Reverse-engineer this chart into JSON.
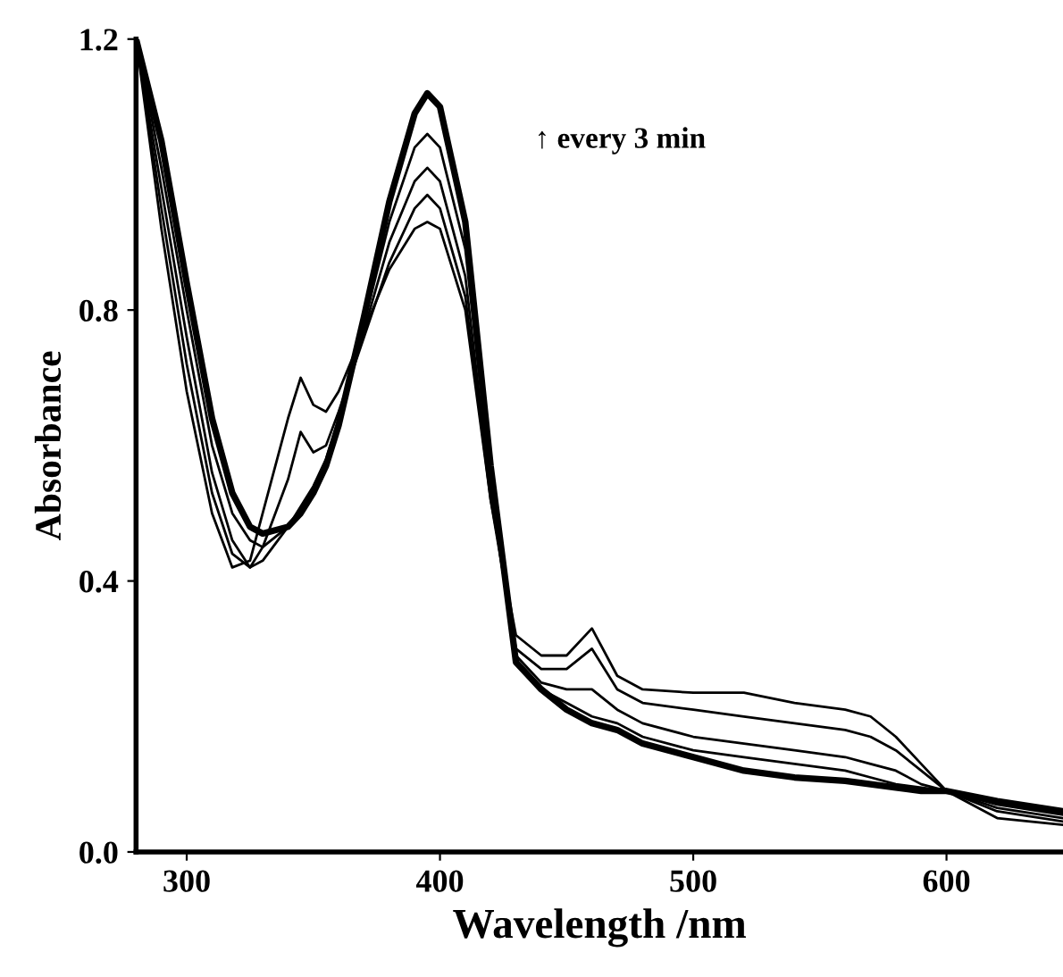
{
  "chart_data": {
    "type": "line",
    "xlabel": "Wavelength /nm",
    "ylabel": "Absorbance",
    "annotations": [
      "↑ every 3 min"
    ],
    "xlim": [
      280,
      646
    ],
    "ylim": [
      0.0,
      1.2
    ],
    "xticks": [
      300,
      400,
      500,
      600
    ],
    "yticks": [
      {
        "value": 0.0,
        "label": "0.0"
      },
      {
        "value": 0.4,
        "label": "0.4"
      },
      {
        "value": 0.8,
        "label": "0.8"
      },
      {
        "value": 1.2,
        "label": "1.2"
      }
    ],
    "grid": false,
    "marker": "none",
    "line_style": "solid",
    "x": [
      280,
      290,
      300,
      310,
      318,
      325,
      330,
      340,
      345,
      350,
      355,
      360,
      370,
      380,
      390,
      395,
      400,
      410,
      420,
      430,
      440,
      450,
      460,
      470,
      480,
      500,
      520,
      540,
      560,
      570,
      580,
      590,
      600,
      620,
      646
    ],
    "series": [
      {
        "color": "#000000",
        "values": [
          1.2,
          0.92,
          0.68,
          0.5,
          0.42,
          0.43,
          0.5,
          0.64,
          0.7,
          0.66,
          0.65,
          0.68,
          0.77,
          0.86,
          0.92,
          0.93,
          0.92,
          0.8,
          0.52,
          0.32,
          0.29,
          0.29,
          0.33,
          0.26,
          0.24,
          0.235,
          0.235,
          0.22,
          0.21,
          0.2,
          0.17,
          0.13,
          0.09,
          0.05,
          0.04
        ]
      },
      {
        "color": "#000000",
        "values": [
          1.2,
          0.95,
          0.72,
          0.53,
          0.44,
          0.42,
          0.45,
          0.55,
          0.62,
          0.59,
          0.6,
          0.65,
          0.76,
          0.87,
          0.95,
          0.97,
          0.95,
          0.82,
          0.52,
          0.3,
          0.27,
          0.27,
          0.3,
          0.24,
          0.22,
          0.21,
          0.2,
          0.19,
          0.18,
          0.17,
          0.15,
          0.12,
          0.09,
          0.06,
          0.045
        ]
      },
      {
        "color": "#000000",
        "values": [
          1.2,
          0.98,
          0.76,
          0.56,
          0.46,
          0.42,
          0.43,
          0.48,
          0.51,
          0.54,
          0.58,
          0.64,
          0.77,
          0.9,
          0.99,
          1.01,
          0.99,
          0.85,
          0.53,
          0.29,
          0.25,
          0.24,
          0.24,
          0.21,
          0.19,
          0.17,
          0.16,
          0.15,
          0.14,
          0.13,
          0.12,
          0.1,
          0.09,
          0.065,
          0.05
        ]
      },
      {
        "color": "#000000",
        "values": [
          1.2,
          1.01,
          0.8,
          0.6,
          0.5,
          0.46,
          0.45,
          0.48,
          0.5,
          0.53,
          0.57,
          0.63,
          0.78,
          0.93,
          1.04,
          1.06,
          1.04,
          0.89,
          0.55,
          0.28,
          0.24,
          0.22,
          0.2,
          0.19,
          0.17,
          0.15,
          0.14,
          0.13,
          0.12,
          0.11,
          0.1,
          0.095,
          0.09,
          0.07,
          0.055
        ]
      },
      {
        "color": "#000000",
        "values": [
          1.2,
          1.05,
          0.84,
          0.64,
          0.53,
          0.48,
          0.47,
          0.48,
          0.5,
          0.53,
          0.57,
          0.63,
          0.79,
          0.96,
          1.09,
          1.12,
          1.1,
          0.93,
          0.57,
          0.28,
          0.24,
          0.21,
          0.19,
          0.18,
          0.16,
          0.14,
          0.12,
          0.11,
          0.105,
          0.1,
          0.095,
          0.09,
          0.09,
          0.075,
          0.06
        ]
      }
    ]
  }
}
